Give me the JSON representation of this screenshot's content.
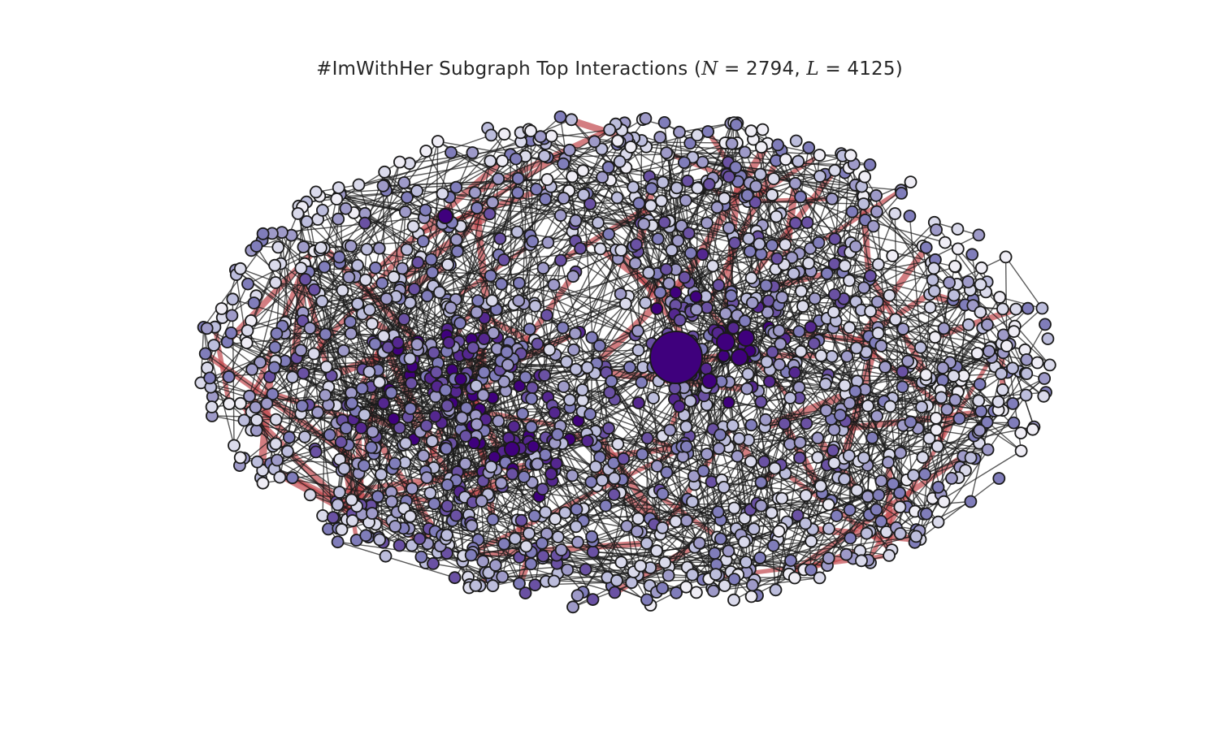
{
  "figure": {
    "title_prefix": "#ImWithHer Subgraph Top Interactions (",
    "n_symbol": "N",
    "n_value": "2794",
    "l_symbol": "L",
    "l_value": "4125",
    "equals": " = ",
    "separator": ", ",
    "title_suffix": ")"
  },
  "network": {
    "node_count": 2794,
    "edge_count": 4125,
    "colors": {
      "background": "#ffffff",
      "node_outline": "#1a1a1a",
      "edge_regular": "#1a1a1a",
      "edge_top": "#c0464b",
      "node_palette": [
        "#efedf5",
        "#dadaeb",
        "#bcbddc",
        "#9e9ac8",
        "#807dba",
        "#6a51a3",
        "#54278f",
        "#3f007d"
      ]
    }
  }
}
